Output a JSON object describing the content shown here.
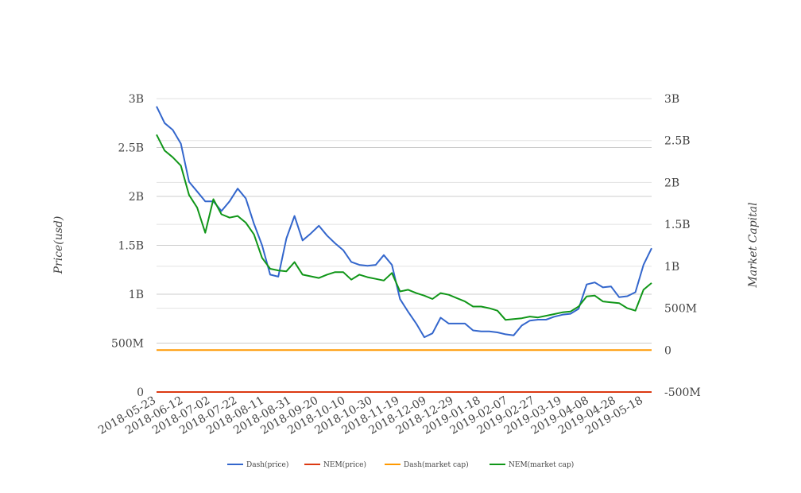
{
  "chart_data": {
    "type": "line",
    "title": "",
    "ylabel_left": "Price(usd)",
    "ylabel_right": "Market Capital",
    "ylim_left": [
      0,
      3000000000
    ],
    "ylim_right": [
      -500000000,
      3000000000
    ],
    "yticks_left": [
      {
        "v": 0,
        "label": "0"
      },
      {
        "v": 500000000,
        "label": "500M"
      },
      {
        "v": 1000000000,
        "label": "1B"
      },
      {
        "v": 1500000000,
        "label": "1.5B"
      },
      {
        "v": 2000000000,
        "label": "2B"
      },
      {
        "v": 2500000000,
        "label": "2.5B"
      },
      {
        "v": 3000000000,
        "label": "3B"
      }
    ],
    "yticks_right": [
      {
        "v": -500000000,
        "label": "-500M"
      },
      {
        "v": 0,
        "label": "0"
      },
      {
        "v": 500000000,
        "label": "500M"
      },
      {
        "v": 1000000000,
        "label": "1B"
      },
      {
        "v": 1500000000,
        "label": "1.5B"
      },
      {
        "v": 2000000000,
        "label": "2B"
      },
      {
        "v": 2500000000,
        "label": "2.5B"
      },
      {
        "v": 3000000000,
        "label": "3B"
      }
    ],
    "xticks": [
      "2018-05-23",
      "2018-06-12",
      "2018-07-02",
      "2018-07-22",
      "2018-08-11",
      "2018-08-31",
      "2018-09-20",
      "2018-10-10",
      "2018-10-30",
      "2018-11-19",
      "2018-12-09",
      "2018-12-29",
      "2019-01-18",
      "2019-02-07",
      "2019-02-27",
      "2019-03-19",
      "2019-04-08",
      "2019-04-28",
      "2019-05-18"
    ],
    "xlim": [
      "2018-05-23",
      "2019-05-24"
    ],
    "grid": true,
    "legend_position": "bottom",
    "x": [
      "2018-05-23",
      "2018-05-29",
      "2018-06-04",
      "2018-06-10",
      "2018-06-16",
      "2018-06-22",
      "2018-06-28",
      "2018-07-04",
      "2018-07-10",
      "2018-07-16",
      "2018-07-22",
      "2018-07-28",
      "2018-08-03",
      "2018-08-09",
      "2018-08-15",
      "2018-08-21",
      "2018-08-27",
      "2018-09-02",
      "2018-09-08",
      "2018-09-14",
      "2018-09-20",
      "2018-09-26",
      "2018-10-02",
      "2018-10-08",
      "2018-10-14",
      "2018-10-20",
      "2018-10-26",
      "2018-11-01",
      "2018-11-07",
      "2018-11-13",
      "2018-11-19",
      "2018-11-25",
      "2018-12-01",
      "2018-12-07",
      "2018-12-13",
      "2018-12-19",
      "2018-12-25",
      "2018-12-31",
      "2019-01-06",
      "2019-01-12",
      "2019-01-18",
      "2019-01-24",
      "2019-01-30",
      "2019-02-05",
      "2019-02-11",
      "2019-02-17",
      "2019-02-23",
      "2019-03-01",
      "2019-03-07",
      "2019-03-13",
      "2019-03-19",
      "2019-03-25",
      "2019-03-31",
      "2019-04-06",
      "2019-04-12",
      "2019-04-18",
      "2019-04-24",
      "2019-04-30",
      "2019-05-06",
      "2019-05-12",
      "2019-05-18",
      "2019-05-24"
    ],
    "series": [
      {
        "name": "Dash(price)",
        "axis": "left",
        "color": "#3366cc",
        "values": [
          2920000000.0,
          2750000000.0,
          2680000000.0,
          2540000000.0,
          2150000000.0,
          2050000000.0,
          1950000000.0,
          1950000000.0,
          1850000000.0,
          1950000000.0,
          2080000000.0,
          1980000000.0,
          1720000000.0,
          1500000000.0,
          1200000000.0,
          1180000000.0,
          1570000000.0,
          1800000000.0,
          1550000000.0,
          1620000000.0,
          1700000000.0,
          1600000000.0,
          1520000000.0,
          1450000000.0,
          1330000000.0,
          1300000000.0,
          1290000000.0,
          1300000000.0,
          1400000000.0,
          1300000000.0,
          950000000.0,
          820000000.0,
          700000000.0,
          560000000.0,
          600000000.0,
          760000000.0,
          700000000.0,
          700000000.0,
          700000000.0,
          630000000.0,
          620000000.0,
          620000000.0,
          610000000.0,
          590000000.0,
          580000000.0,
          680000000.0,
          730000000.0,
          740000000.0,
          740000000.0,
          770000000.0,
          790000000.0,
          800000000.0,
          850000000.0,
          1100000000.0,
          1120000000.0,
          1070000000.0,
          1080000000.0,
          970000000.0,
          980000000.0,
          1020000000.0,
          1300000000.0,
          1470000000.0
        ]
      },
      {
        "name": "NEM(price)",
        "axis": "left",
        "color": "#dc3912",
        "values": [
          0,
          0,
          0,
          0,
          0,
          0,
          0,
          0,
          0,
          0,
          0,
          0,
          0,
          0,
          0,
          0,
          0,
          0,
          0,
          0,
          0,
          0,
          0,
          0,
          0,
          0,
          0,
          0,
          0,
          0,
          0,
          0,
          0,
          0,
          0,
          0,
          0,
          0,
          0,
          0,
          0,
          0,
          0,
          0,
          0,
          0,
          0,
          0,
          0,
          0,
          0,
          0,
          0,
          0,
          0,
          0,
          0,
          0,
          0,
          0,
          0,
          0
        ]
      },
      {
        "name": "Dash(market cap)",
        "axis": "right",
        "color": "#ff9900",
        "values": [
          0,
          0,
          0,
          0,
          0,
          0,
          0,
          0,
          0,
          0,
          0,
          0,
          0,
          0,
          0,
          0,
          0,
          0,
          0,
          0,
          0,
          0,
          0,
          0,
          0,
          0,
          0,
          0,
          0,
          0,
          0,
          0,
          0,
          0,
          0,
          0,
          0,
          0,
          0,
          0,
          0,
          0,
          0,
          0,
          0,
          0,
          0,
          0,
          0,
          0,
          0,
          0,
          0,
          0,
          0,
          0,
          0,
          0,
          0,
          0,
          0,
          0
        ]
      },
      {
        "name": "NEM(market cap)",
        "axis": "right",
        "color": "#109618",
        "values": [
          2570000000.0,
          2380000000.0,
          2300000000.0,
          2200000000.0,
          1850000000.0,
          1700000000.0,
          1400000000.0,
          1800000000.0,
          1620000000.0,
          1580000000.0,
          1600000000.0,
          1520000000.0,
          1380000000.0,
          1100000000.0,
          970000000.0,
          950000000.0,
          940000000.0,
          1050000000.0,
          900000000.0,
          880000000.0,
          860000000.0,
          900000000.0,
          930000000.0,
          930000000.0,
          840000000.0,
          900000000.0,
          870000000.0,
          850000000.0,
          830000000.0,
          920000000.0,
          700000000.0,
          720000000.0,
          680000000.0,
          650000000.0,
          610000000.0,
          680000000.0,
          660000000.0,
          620000000.0,
          580000000.0,
          520000000.0,
          520000000.0,
          500000000.0,
          470000000.0,
          360000000.0,
          370000000.0,
          380000000.0,
          400000000.0,
          390000000.0,
          410000000.0,
          430000000.0,
          450000000.0,
          460000000.0,
          520000000.0,
          640000000.0,
          650000000.0,
          580000000.0,
          570000000.0,
          560000000.0,
          500000000.0,
          470000000.0,
          720000000.0,
          800000000.0
        ]
      }
    ]
  }
}
